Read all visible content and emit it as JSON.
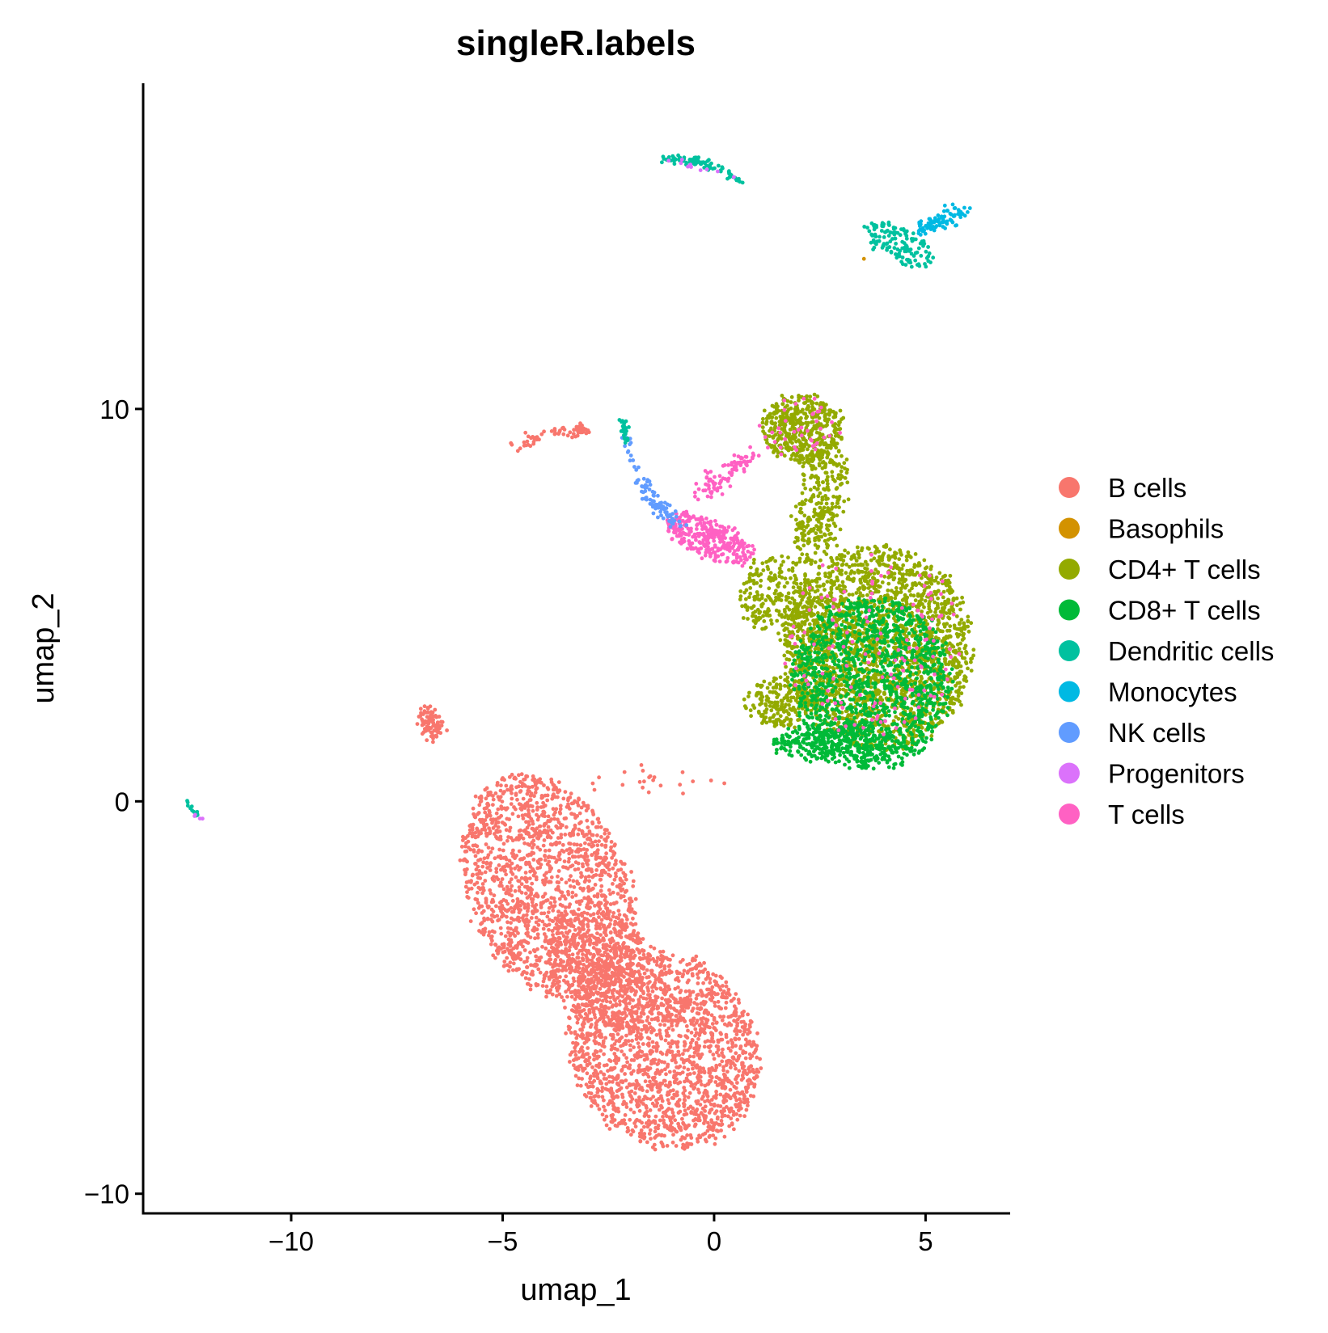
{
  "chart_data": {
    "type": "scatter",
    "title": "singleR.labels",
    "xlabel": "umap_1",
    "ylabel": "umap_2",
    "xlim": [
      -13.5,
      7
    ],
    "ylim": [
      -10.5,
      18.3
    ],
    "x_ticks": [
      {
        "value": -10,
        "label": "−10"
      },
      {
        "value": -5,
        "label": "−5"
      },
      {
        "value": 0,
        "label": "0"
      },
      {
        "value": 5,
        "label": "5"
      }
    ],
    "y_ticks": [
      {
        "value": -10,
        "label": "−10"
      },
      {
        "value": 0,
        "label": "0"
      },
      {
        "value": 10,
        "label": "10"
      }
    ],
    "grid": false,
    "legend_position": "right",
    "legend": [
      {
        "name": "B cells",
        "color": "#F8766D"
      },
      {
        "name": "Basophils",
        "color": "#D39200"
      },
      {
        "name": "CD4+ T cells",
        "color": "#93AA00"
      },
      {
        "name": "CD8+ T cells",
        "color": "#00BA38"
      },
      {
        "name": "Dendritic cells",
        "color": "#00C19F"
      },
      {
        "name": "Monocytes",
        "color": "#00B9E3"
      },
      {
        "name": "NK cells",
        "color": "#619CFF"
      },
      {
        "name": "Progenitors",
        "color": "#DB72FB"
      },
      {
        "name": "T cells",
        "color": "#FF61C3"
      }
    ],
    "clusters": [
      {
        "label": "B cells",
        "shape": "ellipse",
        "cx": -3.9,
        "cy": -2.2,
        "rx": 1.9,
        "ry": 3.0,
        "rotation": 20,
        "count": 1700
      },
      {
        "label": "B cells",
        "shape": "ellipse",
        "cx": -1.2,
        "cy": -6.3,
        "rx": 2.2,
        "ry": 2.6,
        "rotation": 25,
        "count": 1900
      },
      {
        "label": "B cells",
        "shape": "ellipse",
        "cx": -2.6,
        "cy": -4.3,
        "rx": 1.2,
        "ry": 1.7,
        "rotation": 35,
        "count": 450
      },
      {
        "label": "B cells",
        "shape": "ellipse",
        "cx": -6.7,
        "cy": 2.0,
        "rx": 0.25,
        "ry": 0.45,
        "rotation": 20,
        "count": 80
      },
      {
        "label": "B cells",
        "shape": "arc",
        "points": [
          [
            -4.8,
            9.0
          ],
          [
            -4.0,
            9.35
          ],
          [
            -3.2,
            9.45
          ],
          [
            -3.0,
            9.45
          ]
        ],
        "spread": 0.07,
        "count": 70
      },
      {
        "label": "B cells",
        "shape": "scatter",
        "cx": -1.5,
        "cy": 0.5,
        "rx": 2.0,
        "ry": 0.5,
        "rotation": 0,
        "count": 22
      },
      {
        "label": "CD4+ T cells",
        "shape": "ellipse",
        "cx": 3.9,
        "cy": 3.9,
        "rx": 2.2,
        "ry": 2.6,
        "rotation": 0,
        "count": 2200
      },
      {
        "label": "CD4+ T cells",
        "shape": "ellipse",
        "cx": 2.1,
        "cy": 9.5,
        "rx": 0.95,
        "ry": 0.85,
        "rotation": 0,
        "count": 450
      },
      {
        "label": "CD4+ T cells",
        "shape": "ellipse",
        "cx": 2.5,
        "cy": 7.6,
        "rx": 0.55,
        "ry": 1.6,
        "rotation": -10,
        "count": 300
      },
      {
        "label": "CD4+ T cells",
        "shape": "ellipse",
        "cx": 1.6,
        "cy": 2.5,
        "rx": 0.8,
        "ry": 0.6,
        "rotation": 0,
        "count": 200
      },
      {
        "label": "CD4+ T cells",
        "shape": "ellipse",
        "cx": 1.5,
        "cy": 5.2,
        "rx": 0.9,
        "ry": 1.0,
        "rotation": 0,
        "count": 250
      },
      {
        "label": "CD8+ T cells",
        "shape": "ellipse",
        "cx": 3.7,
        "cy": 3.0,
        "rx": 1.9,
        "ry": 2.2,
        "rotation": 0,
        "count": 1300
      },
      {
        "label": "CD8+ T cells",
        "shape": "ellipse",
        "cx": 3.0,
        "cy": 1.5,
        "rx": 1.6,
        "ry": 0.5,
        "rotation": 0,
        "count": 300
      },
      {
        "label": "T cells",
        "shape": "ellipse",
        "cx": -0.1,
        "cy": 6.7,
        "rx": 1.1,
        "ry": 0.45,
        "rotation": -25,
        "count": 320
      },
      {
        "label": "T cells",
        "shape": "arc",
        "points": [
          [
            -0.3,
            7.8
          ],
          [
            0.3,
            8.4
          ],
          [
            1.0,
            8.8
          ]
        ],
        "spread": 0.15,
        "count": 90
      },
      {
        "label": "T cells",
        "shape": "ellipse",
        "cx": 3.8,
        "cy": 4.0,
        "rx": 2.1,
        "ry": 2.5,
        "rotation": 0,
        "count": 130
      },
      {
        "label": "T cells",
        "shape": "ellipse",
        "cx": 2.0,
        "cy": 9.5,
        "rx": 0.9,
        "ry": 0.8,
        "rotation": 0,
        "count": 40
      },
      {
        "label": "NK cells",
        "shape": "arc",
        "points": [
          [
            -1.8,
            8.2
          ],
          [
            -1.4,
            7.6
          ],
          [
            -0.9,
            7.1
          ]
        ],
        "spread": 0.1,
        "count": 80
      },
      {
        "label": "NK cells",
        "shape": "arc",
        "points": [
          [
            -2.1,
            9.3
          ],
          [
            -1.9,
            8.5
          ]
        ],
        "spread": 0.05,
        "count": 15
      },
      {
        "label": "Dendritic cells",
        "shape": "arc",
        "points": [
          [
            -1.2,
            16.4
          ],
          [
            -0.3,
            16.3
          ],
          [
            0.7,
            15.8
          ]
        ],
        "spread": 0.06,
        "count": 90
      },
      {
        "label": "Dendritic cells",
        "shape": "ellipse",
        "cx": 4.4,
        "cy": 14.2,
        "rx": 0.9,
        "ry": 0.4,
        "rotation": -30,
        "count": 140
      },
      {
        "label": "Dendritic cells",
        "shape": "arc",
        "points": [
          [
            -2.2,
            9.7
          ],
          [
            -2.0,
            9.2
          ]
        ],
        "spread": 0.06,
        "count": 25
      },
      {
        "label": "Dendritic cells",
        "shape": "arc",
        "points": [
          [
            -12.5,
            0.0
          ],
          [
            -12.2,
            -0.4
          ]
        ],
        "spread": 0.03,
        "count": 12
      },
      {
        "label": "Monocytes",
        "shape": "arc",
        "points": [
          [
            4.8,
            14.5
          ],
          [
            5.4,
            14.8
          ],
          [
            5.9,
            15.0
          ]
        ],
        "spread": 0.12,
        "count": 80
      },
      {
        "label": "Progenitors",
        "shape": "arc",
        "points": [
          [
            -1.2,
            16.4
          ],
          [
            0.5,
            15.9
          ]
        ],
        "spread": 0.05,
        "count": 12
      },
      {
        "label": "Progenitors",
        "shape": "arc",
        "points": [
          [
            -12.3,
            -0.3
          ],
          [
            -12.1,
            -0.5
          ]
        ],
        "spread": 0.02,
        "count": 4
      },
      {
        "label": "Basophils",
        "shape": "scatter",
        "cx": 3.5,
        "cy": 13.9,
        "rx": 0.02,
        "ry": 0.02,
        "rotation": 0,
        "count": 1
      }
    ]
  }
}
